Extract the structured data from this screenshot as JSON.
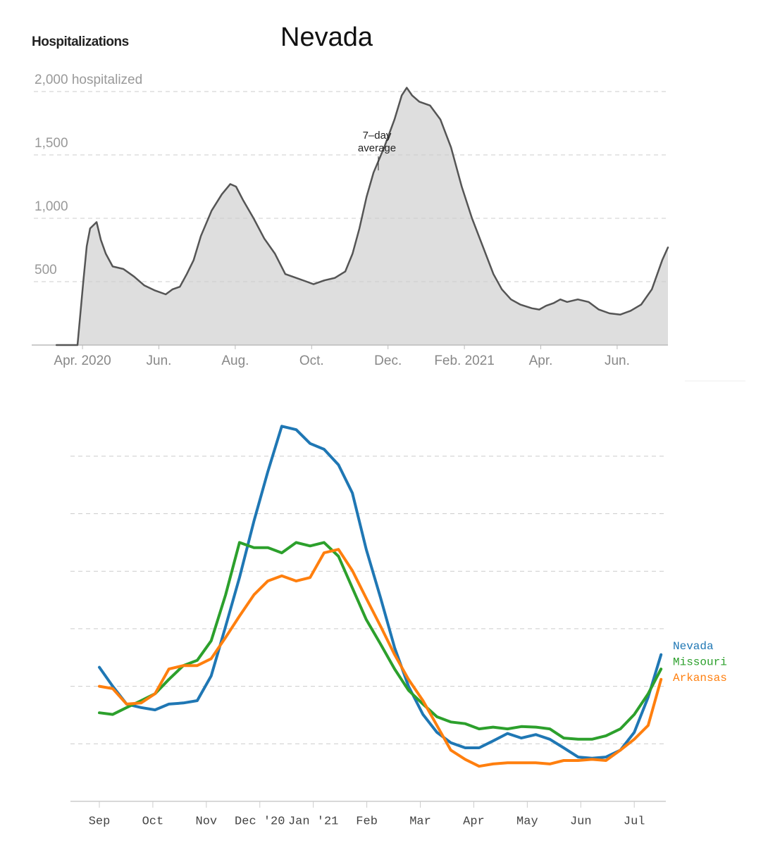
{
  "chart_data": [
    {
      "type": "line",
      "label": "Hospitalizations",
      "title": "Nevada",
      "annotation": "7–day average",
      "x": [
        -0.68,
        -0.13,
        0.02,
        0.11,
        0.2,
        0.37,
        0.48,
        0.61,
        0.79,
        1.07,
        1.35,
        1.62,
        1.9,
        2.18,
        2.36,
        2.55,
        2.73,
        2.91,
        3.1,
        3.38,
        3.65,
        3.87,
        4.02,
        4.21,
        4.48,
        4.76,
        5.04,
        5.31,
        5.59,
        5.87,
        6.05,
        6.33,
        6.61,
        6.88,
        7.07,
        7.25,
        7.44,
        7.62,
        7.9,
        8.17,
        8.36,
        8.49,
        8.63,
        8.82,
        9.1,
        9.37,
        9.65,
        9.93,
        10.2,
        10.48,
        10.76,
        10.98,
        11.22,
        11.46,
        11.77,
        11.96,
        12.14,
        12.33,
        12.51,
        12.69,
        12.97,
        13.25,
        13.52,
        13.8,
        14.08,
        14.35,
        14.63,
        14.91,
        15.18,
        15.33
      ],
      "series": [
        {
          "color": "#555555",
          "area_color": "#dedede",
          "values": [
            0,
            0,
            500,
            780,
            920,
            970,
            830,
            720,
            620,
            600,
            540,
            470,
            430,
            400,
            440,
            460,
            560,
            670,
            860,
            1060,
            1190,
            1270,
            1250,
            1140,
            1000,
            840,
            720,
            560,
            530,
            500,
            480,
            510,
            530,
            580,
            720,
            920,
            1170,
            1360,
            1560,
            1780,
            1970,
            2030,
            1970,
            1920,
            1890,
            1780,
            1560,
            1250,
            1000,
            780,
            560,
            440,
            360,
            320,
            290,
            280,
            310,
            330,
            360,
            340,
            360,
            340,
            280,
            250,
            240,
            270,
            320,
            440,
            670,
            770
          ]
        }
      ],
      "xlim": [
        -1.33,
        15.33
      ],
      "xticks": [
        {
          "value": 0,
          "label": "Apr. 2020"
        },
        {
          "value": 2,
          "label": "Jun."
        },
        {
          "value": 4,
          "label": "Aug."
        },
        {
          "value": 6,
          "label": "Oct."
        },
        {
          "value": 8,
          "label": "Dec."
        },
        {
          "value": 10,
          "label": "Feb. 2021"
        },
        {
          "value": 12,
          "label": "Apr."
        },
        {
          "value": 14,
          "label": "Jun."
        }
      ],
      "ylim": [
        0,
        2050
      ],
      "yticks": [
        500,
        {
          "value": 1000,
          "label": "1,000"
        },
        {
          "value": 1500,
          "label": "1,500"
        },
        {
          "value": 2000,
          "label": "2,000 hospitalized"
        }
      ],
      "grid": true
    },
    {
      "type": "line",
      "x": [
        0,
        0.25,
        0.51,
        0.78,
        1.04,
        1.3,
        1.57,
        1.83,
        2.09,
        2.36,
        2.62,
        2.89,
        3.15,
        3.41,
        3.68,
        3.94,
        4.2,
        4.47,
        4.73,
        4.99,
        5.26,
        5.52,
        5.78,
        6.05,
        6.31,
        6.57,
        6.84,
        7.1,
        7.36,
        7.63,
        7.89,
        8.16,
        8.42,
        8.68,
        8.95,
        9.21,
        9.47,
        9.74,
        10.0,
        10.26,
        10.5
      ],
      "series": [
        {
          "name": "Nevada",
          "color": "#1f77b4",
          "values": [
            2.33,
            2.0,
            1.69,
            1.63,
            1.59,
            1.69,
            1.71,
            1.75,
            2.18,
            3.04,
            3.89,
            4.87,
            5.73,
            6.52,
            6.46,
            6.22,
            6.12,
            5.85,
            5.36,
            4.38,
            3.53,
            2.67,
            2.0,
            1.51,
            1.2,
            1.02,
            0.93,
            0.93,
            1.05,
            1.18,
            1.1,
            1.16,
            1.08,
            0.93,
            0.77,
            0.75,
            0.77,
            0.89,
            1.2,
            1.81,
            2.55
          ]
        },
        {
          "name": "Missouri",
          "color": "#2ca02c",
          "values": [
            1.54,
            1.51,
            1.63,
            1.75,
            1.87,
            2.12,
            2.36,
            2.45,
            2.79,
            3.59,
            4.5,
            4.41,
            4.41,
            4.32,
            4.5,
            4.44,
            4.5,
            4.26,
            3.71,
            3.16,
            2.73,
            2.3,
            1.93,
            1.69,
            1.47,
            1.38,
            1.35,
            1.26,
            1.29,
            1.26,
            1.3,
            1.29,
            1.26,
            1.1,
            1.08,
            1.08,
            1.14,
            1.26,
            1.51,
            1.87,
            2.3
          ]
        },
        {
          "name": "Arkansas",
          "color": "#ff7f0e",
          "values": [
            2.0,
            1.96,
            1.69,
            1.71,
            1.87,
            2.3,
            2.36,
            2.36,
            2.48,
            2.85,
            3.22,
            3.59,
            3.83,
            3.92,
            3.83,
            3.89,
            4.32,
            4.38,
            4.01,
            3.53,
            3.04,
            2.55,
            2.12,
            1.75,
            1.32,
            0.89,
            0.73,
            0.61,
            0.65,
            0.67,
            0.67,
            0.67,
            0.65,
            0.71,
            0.71,
            0.73,
            0.71,
            0.89,
            1.08,
            1.32,
            2.12
          ]
        }
      ],
      "xlim": [
        -0.54,
        10.59
      ],
      "xticks": [
        {
          "value": 0,
          "label": "Sep"
        },
        {
          "value": 1,
          "label": "Oct"
        },
        {
          "value": 2,
          "label": "Nov"
        },
        {
          "value": 3,
          "label": "Dec '20"
        },
        {
          "value": 4,
          "label": "Jan '21"
        },
        {
          "value": 5,
          "label": "Feb"
        },
        {
          "value": 6,
          "label": "Mar"
        },
        {
          "value": 7,
          "label": "Apr"
        },
        {
          "value": 8,
          "label": "May"
        },
        {
          "value": 9,
          "label": "Jun"
        },
        {
          "value": 10,
          "label": "Jul"
        }
      ],
      "ylim": [
        0,
        6.6
      ],
      "yticks": [
        1,
        2,
        3,
        4,
        5,
        6
      ],
      "ytick_labels": false,
      "grid": true,
      "legend": "right"
    }
  ]
}
